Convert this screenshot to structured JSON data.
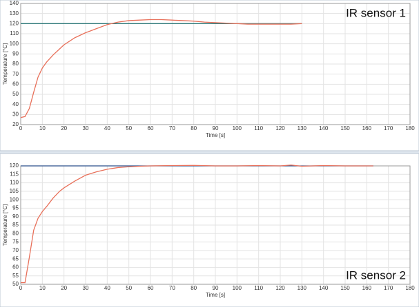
{
  "chart_data": [
    {
      "type": "line",
      "annotation": "IR sensor 1",
      "annotation_position": "top-right",
      "xlabel": "Time [s]",
      "ylabel": "Temperature [°C]",
      "xlim": [
        0,
        180
      ],
      "xticks": [
        0,
        10,
        20,
        30,
        40,
        50,
        60,
        70,
        80,
        90,
        100,
        110,
        120,
        130,
        140,
        150,
        160,
        170,
        180
      ],
      "ylim": [
        20,
        140
      ],
      "yticks": [
        20,
        30,
        40,
        50,
        60,
        70,
        80,
        90,
        100,
        110,
        120,
        130,
        140
      ],
      "grid": true,
      "series": [
        {
          "color": "#2f7a7a",
          "x": [
            0,
            130
          ],
          "values": [
            120,
            120
          ]
        },
        {
          "color": "#e8705a",
          "x": [
            0,
            2,
            4,
            6,
            8,
            10,
            12,
            15,
            18,
            20,
            25,
            30,
            35,
            40,
            45,
            50,
            55,
            60,
            65,
            70,
            75,
            80,
            85,
            90,
            95,
            100,
            105,
            110,
            115,
            120,
            125,
            130
          ],
          "values": [
            27,
            28,
            36,
            52,
            67,
            76,
            82,
            89,
            95,
            99,
            106,
            111,
            115,
            119,
            121.5,
            123,
            123.5,
            124,
            124,
            123.5,
            123,
            122.5,
            121.5,
            121,
            120.5,
            120,
            119.5,
            119.5,
            119.5,
            119.5,
            119.5,
            120
          ]
        }
      ]
    },
    {
      "type": "line",
      "annotation": "IR sensor 2",
      "annotation_position": "bottom-right",
      "xlabel": "Time [s]",
      "ylabel": "Temperature [°C]",
      "xlim": [
        0,
        180
      ],
      "xticks": [
        0,
        10,
        20,
        30,
        40,
        50,
        60,
        70,
        80,
        90,
        100,
        110,
        120,
        130,
        140,
        150,
        160,
        170,
        180
      ],
      "ylim": [
        50,
        120
      ],
      "yticks": [
        50,
        55,
        60,
        65,
        70,
        75,
        80,
        85,
        90,
        95,
        100,
        105,
        110,
        115,
        120
      ],
      "grid": true,
      "series": [
        {
          "color": "#2a4f8a",
          "x": [
            0,
            163
          ],
          "values": [
            120,
            120
          ]
        },
        {
          "color": "#e8705a",
          "x": [
            0,
            2,
            4,
            6,
            8,
            10,
            12,
            15,
            18,
            20,
            25,
            30,
            35,
            40,
            45,
            50,
            55,
            60,
            70,
            80,
            90,
            100,
            110,
            120,
            125,
            130,
            140,
            150,
            163
          ],
          "values": [
            51,
            51,
            66,
            82,
            89,
            93,
            96,
            101,
            105,
            107,
            111,
            114.5,
            116.5,
            118,
            119,
            119.5,
            119.8,
            120,
            120.2,
            120.3,
            120,
            120,
            120.2,
            120,
            120.5,
            119.8,
            120.2,
            120,
            120
          ]
        }
      ]
    }
  ]
}
